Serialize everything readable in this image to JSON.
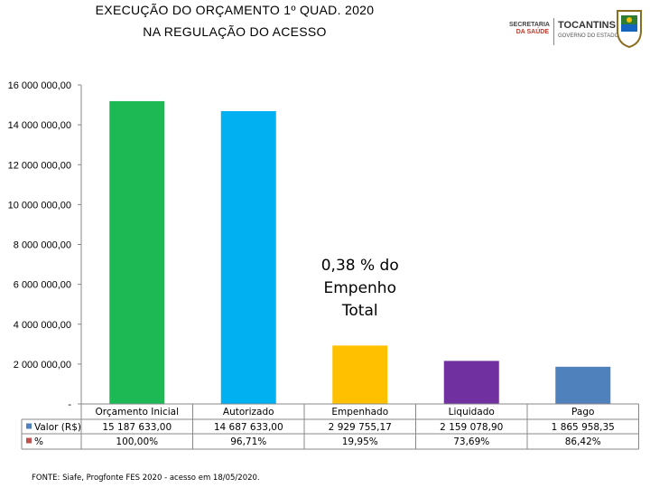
{
  "header": {
    "title_line1": "EXECUÇÃO DO ORÇAMENTO 1º QUAD. 2020",
    "title_line2": "NA REGULAÇÃO DO ACESSO"
  },
  "logos": {
    "secretaria_line1": "SECRETARIA",
    "secretaria_line2": "DA SAÚDE",
    "tocantins": "TOCANTINS",
    "governo": "GOVERNO DO ESTADO"
  },
  "chart_data": {
    "type": "bar",
    "title": "EXECUÇÃO DO ORÇAMENTO 1º QUAD. 2020 NA REGULAÇÃO DO ACESSO",
    "categories": [
      "Orçamento Inicial",
      "Autorizado",
      "Empenhado",
      "Liquidado",
      "Pago"
    ],
    "values": [
      15187633.0,
      14687633.0,
      2929755.17,
      2159078.9,
      1865958.35
    ],
    "colors": [
      "#1db954",
      "#00b0f0",
      "#ffc000",
      "#7030a0",
      "#4f81bd"
    ],
    "ylim": [
      0,
      16000000
    ],
    "yticks": [
      0,
      2000000,
      4000000,
      6000000,
      8000000,
      10000000,
      12000000,
      14000000,
      16000000
    ],
    "ytick_labels": [
      "-",
      "2 000 000,00",
      "4 000 000,00",
      "6 000 000,00",
      "8 000 000,00",
      "10 000 000,00",
      "12 000 000,00",
      "14 000 000,00",
      "16 000 000,00"
    ],
    "annotation": [
      "0,38 % do",
      "Empenho",
      "Total"
    ],
    "table": {
      "rows": [
        {
          "label": "Valor (R$)",
          "marker_color": "#4f81bd",
          "cells": [
            "15 187 633,00",
            "14 687 633,00",
            "2 929 755,17",
            "2 159 078,90",
            "1 865 958,35"
          ]
        },
        {
          "label": "%",
          "marker_color": "#c0504d",
          "cells": [
            "100,00%",
            "96,71%",
            "19,95%",
            "73,69%",
            "86,42%"
          ]
        }
      ]
    }
  },
  "footer": {
    "source": "FONTE: Siafe, Progfonte FES 2020 - acesso em 18/05/2020."
  }
}
